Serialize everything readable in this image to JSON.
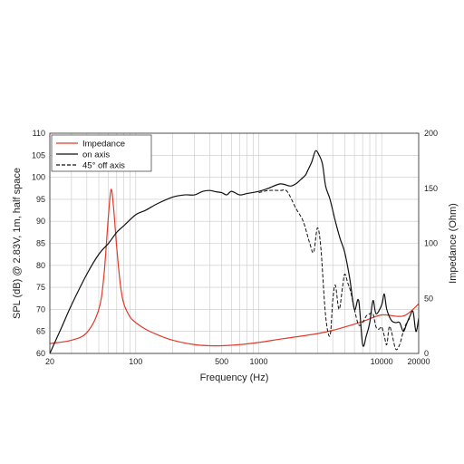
{
  "chart_data": {
    "type": "line",
    "xlabel": "Frequency (Hz)",
    "ylabel_left": "SPL (dB) @ 2.83V, 1m, half space",
    "ylabel_right": "Impedance (Ohm)",
    "x_scale": "log",
    "xlim": [
      20,
      20000
    ],
    "ylim_left": [
      60,
      110
    ],
    "ylim_right": [
      0,
      200
    ],
    "grid": true,
    "legend_position": "top-left",
    "x_ticks": [
      {
        "value": 20,
        "label": "20"
      },
      {
        "value": 100,
        "label": "100"
      },
      {
        "value": 500,
        "label": "500"
      },
      {
        "value": 1000,
        "label": "1000"
      },
      {
        "value": 10000,
        "label": "10000"
      },
      {
        "value": 20000,
        "label": "20000"
      }
    ],
    "y_ticks_left": [
      {
        "value": 60,
        "label": "60"
      },
      {
        "value": 65,
        "label": "65"
      },
      {
        "value": 70,
        "label": "70"
      },
      {
        "value": 75,
        "label": "75"
      },
      {
        "value": 80,
        "label": "80"
      },
      {
        "value": 85,
        "label": "85"
      },
      {
        "value": 90,
        "label": "90"
      },
      {
        "value": 95,
        "label": "95"
      },
      {
        "value": 100,
        "label": "100"
      },
      {
        "value": 105,
        "label": "105"
      },
      {
        "value": 110,
        "label": "110"
      }
    ],
    "y_ticks_right": [
      {
        "value": 0,
        "label": "0"
      },
      {
        "value": 50,
        "label": "50"
      },
      {
        "value": 100,
        "label": "100"
      },
      {
        "value": 150,
        "label": "150"
      },
      {
        "value": 200,
        "label": "200"
      }
    ],
    "series": [
      {
        "name": "Impedance",
        "axis": "right",
        "color": "#e03a2a",
        "style": "solid",
        "x": [
          20,
          30,
          40,
          50,
          55,
          60,
          63,
          66,
          70,
          75,
          80,
          90,
          100,
          120,
          150,
          200,
          300,
          400,
          500,
          700,
          1000,
          1500,
          2000,
          3000,
          4000,
          5000,
          7000,
          10000,
          15000,
          20000
        ],
        "y": [
          9,
          12,
          19,
          40,
          70,
          126,
          149,
          132,
          96,
          62,
          45,
          33,
          28,
          22,
          17,
          12,
          8,
          7,
          7,
          8,
          10,
          13,
          15,
          18,
          21,
          24,
          29,
          35,
          34,
          45
        ]
      },
      {
        "name": "on axis",
        "axis": "left",
        "color": "#111111",
        "style": "solid",
        "x": [
          20,
          25,
          30,
          40,
          50,
          60,
          70,
          80,
          100,
          120,
          150,
          200,
          250,
          300,
          350,
          400,
          450,
          500,
          550,
          600,
          700,
          800,
          1000,
          1200,
          1500,
          1800,
          2000,
          2200,
          2400,
          2500,
          2700,
          2900,
          3100,
          3300,
          3500,
          3800,
          4200,
          4600,
          5000,
          5500,
          6000,
          6500,
          7000,
          7500,
          8000,
          8500,
          9000,
          10000,
          10500,
          11000,
          12000,
          13000,
          14000,
          15000,
          16000,
          17000,
          18000,
          19000,
          20000
        ],
        "y": [
          60,
          66,
          71,
          78,
          82.5,
          85,
          87.5,
          89,
          91.5,
          92.5,
          94,
          95.5,
          96,
          96,
          96.8,
          97,
          96.7,
          96.5,
          96,
          96.8,
          96,
          96.3,
          96.8,
          97.5,
          98.5,
          98,
          98.5,
          99.5,
          100.5,
          101.5,
          103.5,
          106,
          105,
          103,
          98,
          95,
          90,
          86,
          83,
          77,
          70,
          72,
          62,
          64,
          67,
          72,
          69,
          71,
          73.5,
          70,
          67.5,
          67,
          67,
          65,
          66.8,
          68.5,
          69.5,
          65,
          68
        ]
      },
      {
        "name": "45° off axis",
        "axis": "left",
        "color": "#111111",
        "style": "dashed",
        "x": [
          1000,
          1200,
          1500,
          1700,
          2000,
          2300,
          2600,
          2800,
          3000,
          3200,
          3500,
          3800,
          4000,
          4200,
          4500,
          4800,
          5000,
          5300,
          5600,
          6000,
          6500,
          7000,
          7500,
          8000,
          8500,
          9000,
          9500,
          10000,
          10500,
          11000,
          11500,
          12000,
          13000,
          14000,
          15000,
          16000,
          17000
        ],
        "y": [
          96.5,
          97,
          97,
          96.8,
          93,
          90,
          85,
          83,
          88.5,
          84,
          68.5,
          64,
          72,
          75.5,
          70,
          75,
          78,
          76,
          74,
          70,
          66.5,
          67,
          68.5,
          69,
          69,
          66,
          65.5,
          66,
          64,
          62,
          66,
          65,
          61,
          62,
          65,
          67,
          68
        ]
      }
    ]
  }
}
